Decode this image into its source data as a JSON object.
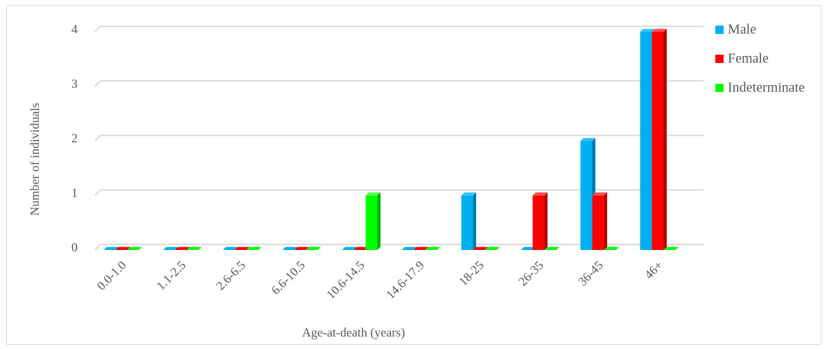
{
  "chart_data": {
    "type": "bar",
    "categories": [
      "0.0-1.0",
      "1.1-2.5",
      "2.6-6.5",
      "6.6-10.5",
      "10.6-14.5",
      "14.6-17.9",
      "18-25",
      "26-35",
      "36-45",
      "46+"
    ],
    "series": [
      {
        "name": "Male",
        "values": [
          0,
          0,
          0,
          0,
          0,
          0,
          1,
          0,
          2,
          4
        ],
        "color": "#00b0f0",
        "side_color": "#0078a8",
        "top_color": "#33c4ff"
      },
      {
        "name": "Female",
        "values": [
          0,
          0,
          0,
          0,
          0,
          0,
          0,
          1,
          1,
          4
        ],
        "color": "#ff0000",
        "side_color": "#b20000",
        "top_color": "#ff4d4d"
      },
      {
        "name": "Indeterminate",
        "values": [
          0,
          0,
          0,
          0,
          1,
          0,
          0,
          0,
          0,
          0
        ],
        "color": "#00ff00",
        "side_color": "#00b000",
        "top_color": "#4dff4d"
      }
    ],
    "xlabel": "Age-at-death (years)",
    "ylabel": "Number of individuals",
    "ylim": [
      0,
      4
    ],
    "yticks": [
      "0",
      "1",
      "2",
      "3",
      "4"
    ],
    "grid": true,
    "legend_position": "right",
    "style": "3d-clustered-column",
    "grid_color": "#d9d9d9"
  }
}
